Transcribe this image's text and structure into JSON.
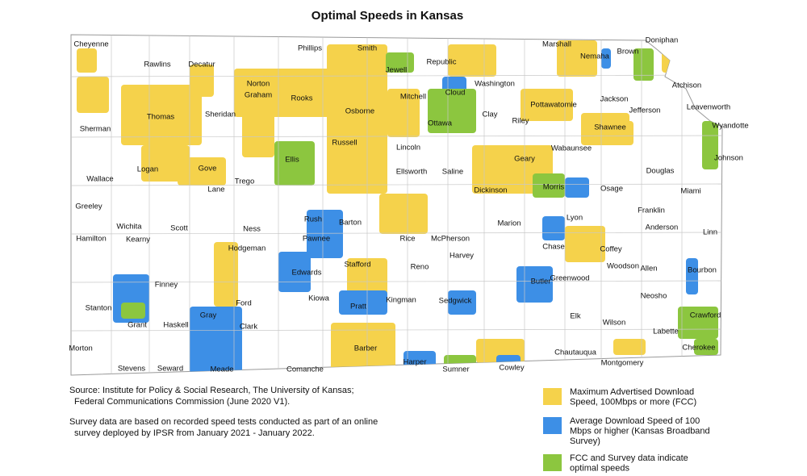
{
  "title": "Optimal Speeds in Kansas",
  "counties": [
    "Cheyenne",
    "Rawlins",
    "Decatur",
    "Norton",
    "Phillips",
    "Smith",
    "Jewell",
    "Republic",
    "Washington",
    "Marshall",
    "Nemaha",
    "Brown",
    "Doniphan",
    "Atchison",
    "Sherman",
    "Thomas",
    "Sheridan",
    "Graham",
    "Rooks",
    "Osborne",
    "Mitchell",
    "Cloud",
    "Clay",
    "Riley",
    "Pottawatomie",
    "Jackson",
    "Jefferson",
    "Leavenworth",
    "Wyandotte",
    "Ottawa",
    "Shawnee",
    "Wallace",
    "Logan",
    "Gove",
    "Trego",
    "Ellis",
    "Russell",
    "Lincoln",
    "Ellsworth",
    "Saline",
    "Dickinson",
    "Geary",
    "Wabaunsee",
    "Douglas",
    "Johnson",
    "Greeley",
    "Wichita",
    "Scott",
    "Lane",
    "Ness",
    "Rush",
    "Barton",
    "Rice",
    "McPherson",
    "Marion",
    "Morris",
    "Lyon",
    "Osage",
    "Franklin",
    "Miami",
    "Hamilton",
    "Kearny",
    "Hodgeman",
    "Pawnee",
    "Stafford",
    "Reno",
    "Harvey",
    "Chase",
    "Coffey",
    "Anderson",
    "Linn",
    "Finney",
    "Edwards",
    "Woodson",
    "Allen",
    "Bourbon",
    "Butler",
    "Greenwood",
    "Stanton",
    "Gray",
    "Ford",
    "Kiowa",
    "Pratt",
    "Kingman",
    "Sedgwick",
    "Neosho",
    "Grant",
    "Haskell",
    "Clark",
    "Elk",
    "Wilson",
    "Crawford",
    "Labette",
    "Morton",
    "Stevens",
    "Seward",
    "Meade",
    "Comanche",
    "Barber",
    "Harper",
    "Sumner",
    "Cowley",
    "Chautauqua",
    "Montgomery",
    "Cherokee"
  ],
  "source": [
    "Source: Institute for Policy & Social Research, The University of Kansas;",
    "Federal Communications Commission (June 2020 V1)."
  ],
  "note": [
    "Survey data are based on recorded speed tests conducted as part of an online",
    "survey deployed by IPSR from January 2021 - January 2022."
  ],
  "legend": [
    {
      "label": [
        "Maximum Advertised Download",
        "Speed, 100Mbps or more (FCC)"
      ],
      "color": "#f5d24b"
    },
    {
      "label": [
        "Average Download Speed of 100",
        "Mbps or higher (Kansas Broadband",
        "Survey)"
      ],
      "color": "#3d8fe6"
    },
    {
      "label": [
        "FCC and Survey data indicate",
        "optimal speeds"
      ],
      "color": "#8cc63f"
    }
  ]
}
